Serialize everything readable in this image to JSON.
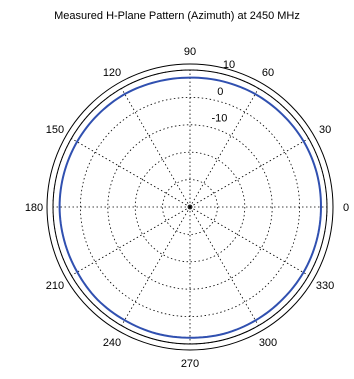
{
  "chart_data": {
    "type": "polar",
    "title": "Measured H-Plane Pattern (Azimuth) at 2450 MHz",
    "angular_tick_labels": [
      "0",
      "30",
      "60",
      "90",
      "120",
      "150",
      "180",
      "210",
      "240",
      "270",
      "300",
      "330"
    ],
    "angular_tick_values_deg": [
      0,
      30,
      60,
      90,
      120,
      150,
      180,
      210,
      240,
      270,
      300,
      330
    ],
    "radial_tick_labels": [
      "-10",
      "0",
      "10"
    ],
    "radial_tick_values": [
      -10,
      0,
      10
    ],
    "radial_range": [
      -40,
      10
    ],
    "grid": true,
    "series": [
      {
        "color": "#3050b0",
        "theta_deg": [
          0,
          15,
          30,
          45,
          60,
          75,
          90,
          105,
          120,
          135,
          150,
          165,
          180,
          195,
          210,
          225,
          240,
          255,
          270,
          285,
          300,
          315,
          330,
          345,
          360
        ],
        "r": [
          7.8,
          7.9,
          7.9,
          7.7,
          7.6,
          7.4,
          7.2,
          7.3,
          7.6,
          7.6,
          7.6,
          7.6,
          7.6,
          7.5,
          7.5,
          7.8,
          7.7,
          7.8,
          7.7,
          7.9,
          7.8,
          7.7,
          7.8,
          7.8,
          7.8
        ]
      }
    ]
  }
}
